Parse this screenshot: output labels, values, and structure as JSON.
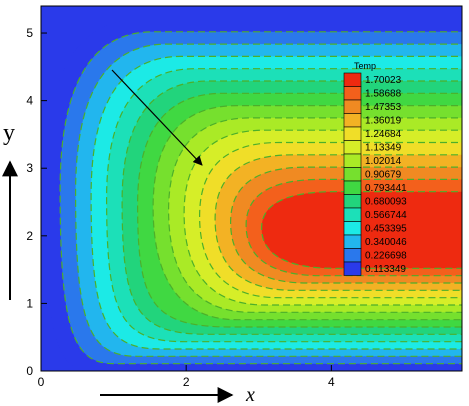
{
  "chart_data": {
    "type": "heatmap",
    "xlabel": "x",
    "ylabel": "y",
    "xlim": [
      0,
      5.8
    ],
    "ylim": [
      0,
      5.4
    ],
    "x_ticks": [
      "0",
      "2",
      "4"
    ],
    "x_tick_values": [
      0,
      2,
      4
    ],
    "y_ticks": [
      "0",
      "1",
      "2",
      "3",
      "4",
      "5"
    ],
    "y_tick_values": [
      0,
      1,
      2,
      3,
      4,
      5
    ],
    "legend": {
      "title": "Temp",
      "placement": "right-inside",
      "levels": [
        "1.70023",
        "1.58688",
        "1.47353",
        "1.36019",
        "1.24684",
        "1.13349",
        "1.02014",
        "0.90679",
        "0.793441",
        "0.680093",
        "0.566744",
        "0.453395",
        "0.340046",
        "0.226698",
        "0.113349"
      ],
      "colors": [
        "#ee2a10",
        "#f3601c",
        "#f08a22",
        "#f3b224",
        "#f0de28",
        "#d6ee28",
        "#aaea26",
        "#76e02e",
        "#40d842",
        "#22d47c",
        "#1ce0b8",
        "#1ceae6",
        "#22b6ee",
        "#2a78ec",
        "#2a3aea"
      ]
    },
    "contour_levels": [
      0.113349,
      0.226698,
      0.340046,
      0.453395,
      0.566744,
      0.680093,
      0.793441,
      0.90679,
      1.02014,
      1.13349,
      1.24684,
      1.36019,
      1.47353,
      1.58688,
      1.70023
    ],
    "annotation": "arrow pointing toward the hot core"
  }
}
